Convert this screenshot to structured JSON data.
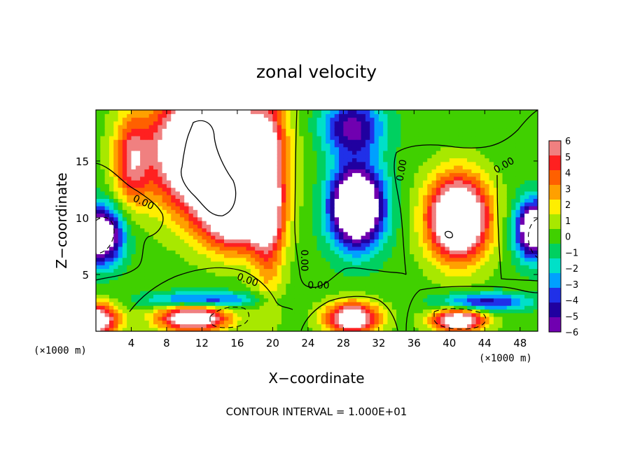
{
  "chart_data": {
    "type": "heatmap",
    "title": "zonal velocity",
    "xlabel": "X−coordinate",
    "ylabel": "Z−coordinate",
    "x_unit_left": "(×1000 m)",
    "x_unit_right": "(×1000 m)",
    "xlim": [
      0,
      50
    ],
    "ylim": [
      0,
      19.5
    ],
    "xticks": [
      4,
      8,
      12,
      16,
      20,
      24,
      28,
      32,
      36,
      40,
      44,
      48
    ],
    "xtick_labels": [
      "4",
      "8",
      "12",
      "16",
      "20",
      "24",
      "28",
      "32",
      "36",
      "40",
      "44",
      "48"
    ],
    "yticks": [
      5,
      10,
      15
    ],
    "ytick_labels": [
      "5",
      "10",
      "15"
    ],
    "colorbar": {
      "levels": [
        6,
        5,
        4,
        3,
        2,
        1,
        0,
        -1,
        -2,
        -3,
        -4,
        -5,
        -6
      ],
      "labels": [
        "6",
        "5",
        "4",
        "3",
        "2",
        "1",
        "0",
        "−1",
        "−2",
        "−3",
        "−4",
        "−5",
        "−6"
      ],
      "colors": [
        "#f08080",
        "#ff2020",
        "#ff6000",
        "#ffa000",
        "#ffee00",
        "#a8e800",
        "#40d000",
        "#00d060",
        "#00e0c8",
        "#00a0ff",
        "#2030e8",
        "#2000a0",
        "#7000b0"
      ]
    },
    "contour_labels": [
      "0.00",
      "0.00",
      "0.00",
      "0.00",
      "0.00",
      "0.00"
    ],
    "footer": "CONTOUR INTERVAL = 1.000E+01",
    "features": [
      {
        "kind": "positive_core",
        "x": 13,
        "z": 16,
        "sx": 6,
        "sz": 5,
        "amp": 16
      },
      {
        "kind": "positive_core",
        "x": 16,
        "z": 10,
        "sx": 4,
        "sz": 3,
        "amp": 8
      },
      {
        "kind": "positive_band",
        "x": 19.5,
        "z": 12,
        "sx": 1.8,
        "sz": 8,
        "amp": 6
      },
      {
        "kind": "positive_band",
        "x": 4,
        "z": 15,
        "sx": 2,
        "sz": 4,
        "amp": 5
      },
      {
        "kind": "positive_core",
        "x": 41,
        "z": 10,
        "sx": 3.4,
        "sz": 3.6,
        "amp": 12
      },
      {
        "kind": "positive_core",
        "x": 11,
        "z": 1.2,
        "sx": 4,
        "sz": 1.2,
        "amp": 9
      },
      {
        "kind": "positive_core",
        "x": 0,
        "z": 1.0,
        "sx": 2.5,
        "sz": 1.5,
        "amp": 9
      },
      {
        "kind": "positive_core",
        "x": 29,
        "z": 1.2,
        "sx": 3,
        "sz": 1.4,
        "amp": 9
      },
      {
        "kind": "positive_core",
        "x": 41,
        "z": 1.0,
        "sx": 3,
        "sz": 1.0,
        "amp": 9
      },
      {
        "kind": "negative_core",
        "x": 29.5,
        "z": 11,
        "sx": 3,
        "sz": 3.5,
        "amp": -12
      },
      {
        "kind": "negative_band",
        "x": 29,
        "z": 18,
        "sx": 3.5,
        "sz": 2.5,
        "amp": -6
      },
      {
        "kind": "negative_core",
        "x": 0.5,
        "z": 8.5,
        "sx": 2.5,
        "sz": 2.5,
        "amp": -10
      },
      {
        "kind": "negative_core",
        "x": 49.5,
        "z": 9,
        "sx": 2,
        "sz": 2.5,
        "amp": -10
      },
      {
        "kind": "negative_band",
        "x": 12,
        "z": 2.8,
        "sx": 6,
        "sz": 0.7,
        "amp": -5
      },
      {
        "kind": "negative_band",
        "x": 44,
        "z": 2.6,
        "sx": 5,
        "sz": 0.8,
        "amp": -5
      }
    ]
  }
}
